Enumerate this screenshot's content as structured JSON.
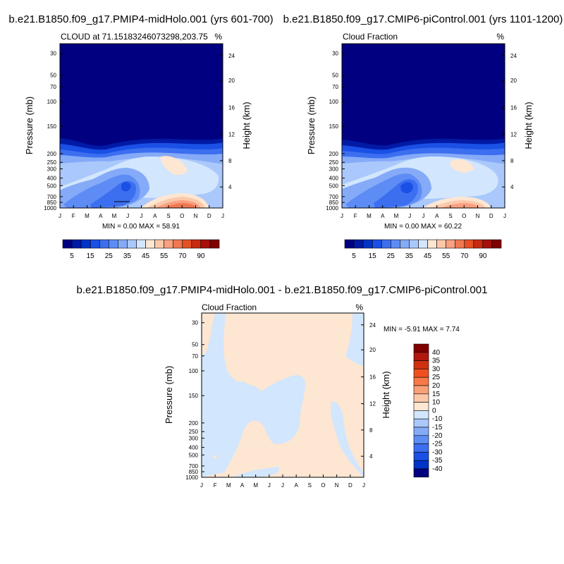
{
  "chart_data": [
    {
      "type": "contour",
      "title": "b.e21.B1850.f09_g17.PMIP4-midHolo.001 (yrs 601-700)",
      "left_label": "CLOUD at 71.15183246073298,203.75",
      "right_label": "%",
      "xlabel": "",
      "ylabel": "Pressure (mb)",
      "ylabel_right": "Height (km)",
      "x_ticks": [
        "J",
        "F",
        "M",
        "A",
        "M",
        "J",
        "J",
        "A",
        "S",
        "O",
        "N",
        "D",
        "J"
      ],
      "pressure_ticks": [
        "30",
        "50",
        "70",
        "100",
        "150",
        "200",
        "250",
        "300",
        "400",
        "500",
        "700",
        "850",
        "1000"
      ],
      "height_ticks": [
        "24",
        "20",
        "16",
        "12",
        "8",
        "4"
      ],
      "min_max": "MIN =   0.00 MAX =  58.91",
      "min": 0.0,
      "max": 58.91,
      "colorbar": {
        "levels": [
          0,
          5,
          10,
          15,
          20,
          25,
          30,
          35,
          40,
          45,
          50,
          55,
          60,
          70,
          80,
          90,
          100
        ],
        "labels": [
          "5",
          "15",
          "25",
          "35",
          "45",
          "55",
          "70",
          "90"
        ],
        "colors": [
          "#000080",
          "#001aa6",
          "#0034c8",
          "#1a50e6",
          "#3c6ef0",
          "#5e8cf5",
          "#85aaf8",
          "#aac8fb",
          "#d2e6fd",
          "#fde6d2",
          "#fbc8aa",
          "#f8a080",
          "#f07850",
          "#e65026",
          "#c82a10",
          "#a6100a",
          "#800000"
        ]
      }
    },
    {
      "type": "contour",
      "title": "b.e21.B1850.f09_g17.CMIP6-piControl.001 (yrs 1101-1200)",
      "left_label": "Cloud Fraction",
      "right_label": "%",
      "ylabel": "Pressure (mb)",
      "ylabel_right": "Height (km)",
      "x_ticks": [
        "J",
        "F",
        "M",
        "A",
        "M",
        "J",
        "J",
        "A",
        "S",
        "O",
        "N",
        "D",
        "J"
      ],
      "pressure_ticks": [
        "30",
        "50",
        "70",
        "100",
        "150",
        "200",
        "250",
        "300",
        "400",
        "500",
        "700",
        "850",
        "1000"
      ],
      "height_ticks": [
        "24",
        "20",
        "16",
        "12",
        "8",
        "4"
      ],
      "min_max": "MIN =   0.00 MAX =  60.22",
      "min": 0.0,
      "max": 60.22,
      "colorbar": {
        "labels": [
          "5",
          "15",
          "25",
          "35",
          "45",
          "55",
          "70",
          "90"
        ]
      }
    },
    {
      "type": "contour",
      "title": "b.e21.B1850.f09_g17.PMIP4-midHolo.001 - b.e21.B1850.f09_g17.CMIP6-piControl.001",
      "left_label": "Cloud Fraction",
      "right_label": "%",
      "ylabel": "Pressure (mb)",
      "ylabel_right": "Height (km)",
      "x_ticks": [
        "J",
        "F",
        "M",
        "A",
        "M",
        "J",
        "J",
        "A",
        "S",
        "O",
        "N",
        "D",
        "J"
      ],
      "pressure_ticks": [
        "30",
        "50",
        "70",
        "100",
        "150",
        "200",
        "250",
        "300",
        "400",
        "500",
        "700",
        "850",
        "1000"
      ],
      "height_ticks": [
        "24",
        "20",
        "16",
        "12",
        "8",
        "4"
      ],
      "min_max": "MIN =  -5.91 MAX =   7.74",
      "min": -5.91,
      "max": 7.74,
      "colorbar": {
        "labels": [
          "40",
          "35",
          "30",
          "25",
          "20",
          "15",
          "10",
          "0",
          "-10",
          "-15",
          "-20",
          "-25",
          "-30",
          "-35",
          "-40"
        ],
        "colors": [
          "#800000",
          "#b0180e",
          "#d03010",
          "#f05020",
          "#f87848",
          "#f8a078",
          "#fbc8a8",
          "#fde6d2",
          "#d2e6fd",
          "#aac8fb",
          "#85aaf8",
          "#5e8cf5",
          "#3c6ef0",
          "#1a50e6",
          "#0034c8",
          "#000080"
        ]
      }
    }
  ]
}
